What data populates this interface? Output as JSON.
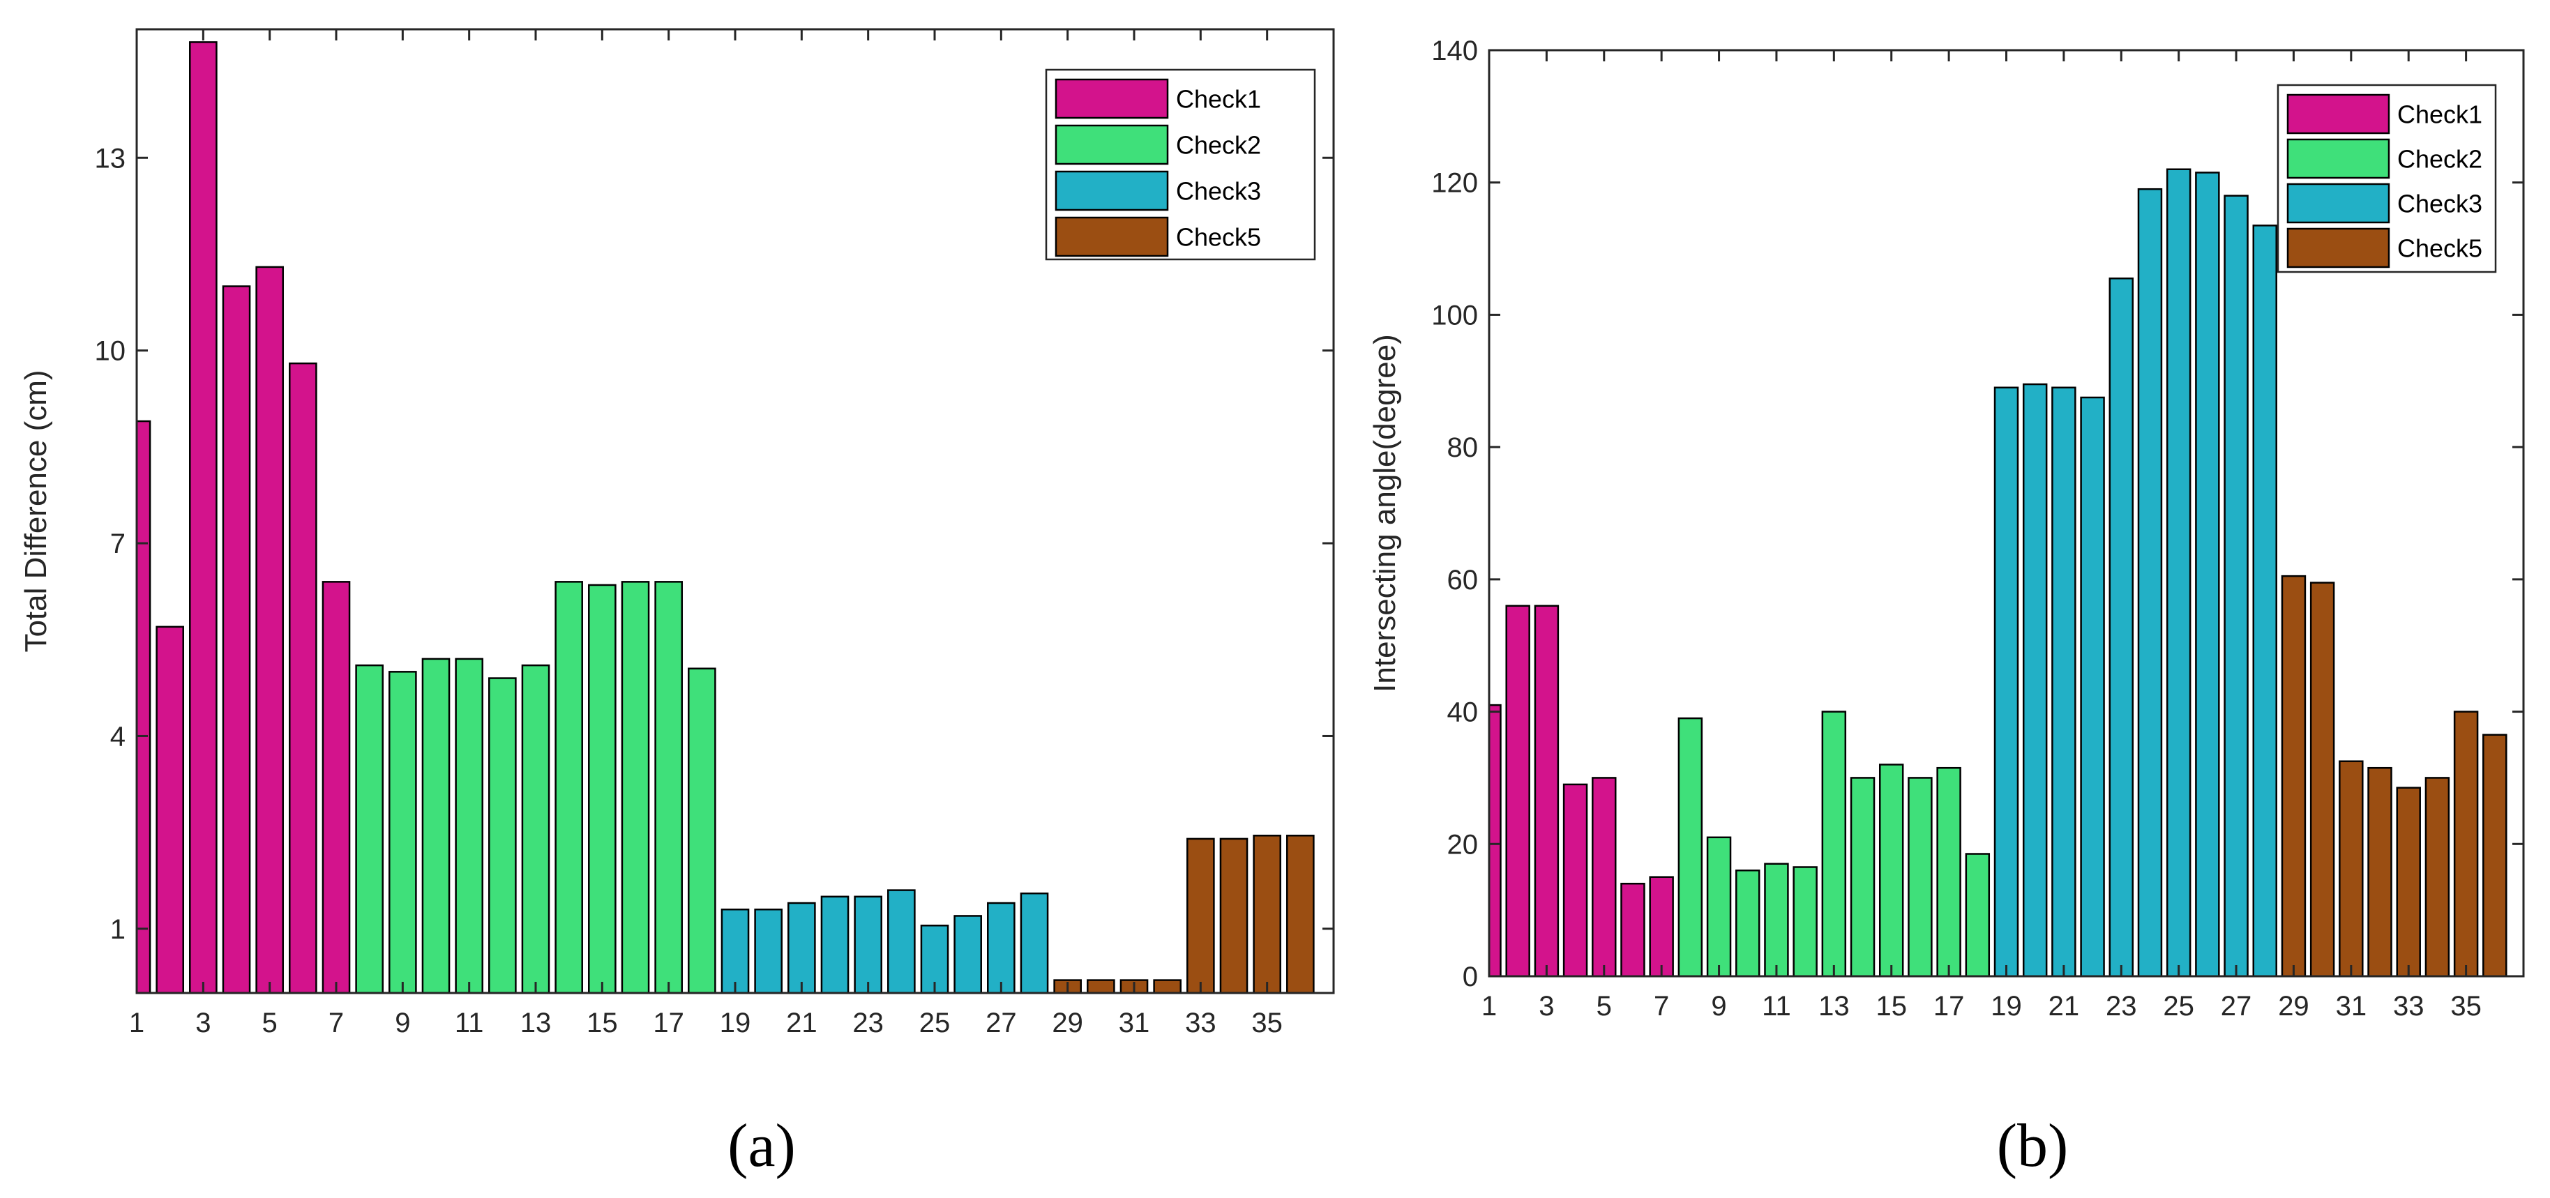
{
  "colors": {
    "Check1": "#D3138C",
    "Check2": "#3FE07A",
    "Check3": "#22B0C6",
    "Check5": "#9B4E12"
  },
  "chart_data": [
    {
      "type": "bar",
      "caption": "(a)",
      "title": "",
      "xlabel": "",
      "ylabel": "Total Difference (cm)",
      "xlim": [
        1,
        37
      ],
      "ylim": [
        0,
        15
      ],
      "yticks": [
        1,
        4,
        7,
        10,
        13
      ],
      "xticks": [
        1,
        3,
        5,
        7,
        9,
        11,
        13,
        15,
        17,
        19,
        21,
        23,
        25,
        27,
        29,
        31,
        33,
        35
      ],
      "legend": [
        "Check1",
        "Check2",
        "Check3",
        "Check5"
      ],
      "legend_position": "top-right",
      "x": [
        1,
        2,
        3,
        4,
        5,
        6,
        7,
        8,
        9,
        10,
        11,
        12,
        13,
        14,
        15,
        16,
        17,
        18,
        19,
        20,
        21,
        22,
        23,
        24,
        25,
        26,
        27,
        28,
        29,
        30,
        31,
        32,
        33,
        34,
        35,
        36
      ],
      "values": [
        8.9,
        5.7,
        14.8,
        11.0,
        11.3,
        9.8,
        6.4,
        5.1,
        5.0,
        5.2,
        5.2,
        4.9,
        5.1,
        6.4,
        6.35,
        6.4,
        6.4,
        5.05,
        1.3,
        1.3,
        1.4,
        1.5,
        1.5,
        1.6,
        1.05,
        1.2,
        1.4,
        1.55,
        0.2,
        0.2,
        0.2,
        0.2,
        2.4,
        2.4,
        2.45,
        2.45
      ],
      "groups": [
        "Check1",
        "Check1",
        "Check1",
        "Check1",
        "Check1",
        "Check1",
        "Check1",
        "Check2",
        "Check2",
        "Check2",
        "Check2",
        "Check2",
        "Check2",
        "Check2",
        "Check2",
        "Check2",
        "Check2",
        "Check2",
        "Check3",
        "Check3",
        "Check3",
        "Check3",
        "Check3",
        "Check3",
        "Check3",
        "Check3",
        "Check3",
        "Check3",
        "Check5",
        "Check5",
        "Check5",
        "Check5",
        "Check5",
        "Check5",
        "Check5",
        "Check5"
      ]
    },
    {
      "type": "bar",
      "caption": "(b)",
      "title": "",
      "xlabel": "",
      "ylabel": "Intersecting angle(degree)",
      "xlim": [
        1,
        37
      ],
      "ylim": [
        0,
        140
      ],
      "yticks": [
        0,
        20,
        40,
        60,
        80,
        100,
        120,
        140
      ],
      "xticks": [
        1,
        3,
        5,
        7,
        9,
        11,
        13,
        15,
        17,
        19,
        21,
        23,
        25,
        27,
        29,
        31,
        33,
        35
      ],
      "legend": [
        "Check1",
        "Check2",
        "Check3",
        "Check5"
      ],
      "legend_position": "top-right",
      "x": [
        1,
        2,
        3,
        4,
        5,
        6,
        7,
        8,
        9,
        10,
        11,
        12,
        13,
        14,
        15,
        16,
        17,
        18,
        19,
        20,
        21,
        22,
        23,
        24,
        25,
        26,
        27,
        28,
        29,
        30,
        31,
        32,
        33,
        34,
        35,
        36
      ],
      "values": [
        41,
        56,
        56,
        29,
        30,
        14,
        15,
        39,
        21,
        16,
        17,
        16.5,
        40,
        30,
        32,
        30,
        31.5,
        18.5,
        89,
        89.5,
        89,
        87.5,
        105.5,
        119,
        122,
        121.5,
        118,
        113.5,
        60.5,
        59.5,
        32.5,
        31.5,
        28.5,
        30,
        40,
        36.5
      ],
      "groups": [
        "Check1",
        "Check1",
        "Check1",
        "Check1",
        "Check1",
        "Check1",
        "Check1",
        "Check2",
        "Check2",
        "Check2",
        "Check2",
        "Check2",
        "Check2",
        "Check2",
        "Check2",
        "Check2",
        "Check2",
        "Check2",
        "Check3",
        "Check3",
        "Check3",
        "Check3",
        "Check3",
        "Check3",
        "Check3",
        "Check3",
        "Check3",
        "Check3",
        "Check5",
        "Check5",
        "Check5",
        "Check5",
        "Check5",
        "Check5",
        "Check5",
        "Check5"
      ]
    }
  ]
}
